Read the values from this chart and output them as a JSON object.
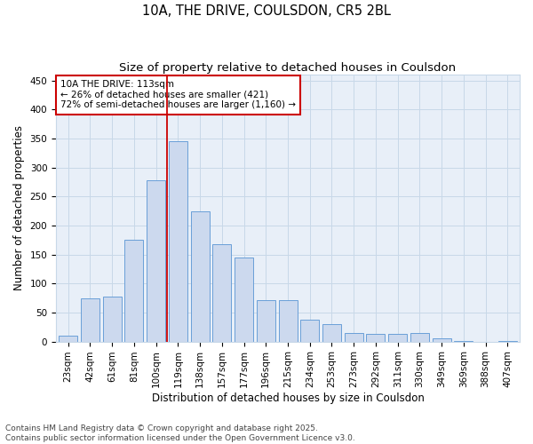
{
  "title1": "10A, THE DRIVE, COULSDON, CR5 2BL",
  "title2": "Size of property relative to detached houses in Coulsdon",
  "xlabel": "Distribution of detached houses by size in Coulsdon",
  "ylabel": "Number of detached properties",
  "categories": [
    "23sqm",
    "42sqm",
    "61sqm",
    "81sqm",
    "100sqm",
    "119sqm",
    "138sqm",
    "157sqm",
    "177sqm",
    "196sqm",
    "215sqm",
    "234sqm",
    "253sqm",
    "273sqm",
    "292sqm",
    "311sqm",
    "330sqm",
    "349sqm",
    "369sqm",
    "388sqm",
    "407sqm"
  ],
  "values": [
    10,
    75,
    78,
    175,
    278,
    345,
    225,
    168,
    145,
    72,
    72,
    38,
    30,
    15,
    13,
    13,
    15,
    6,
    1,
    0,
    1
  ],
  "bar_color": "#ccd9ee",
  "bar_edge_color": "#6a9fd8",
  "vline_x_index": 4.5,
  "vline_color": "#cc0000",
  "annotation_text": "10A THE DRIVE: 113sqm\n← 26% of detached houses are smaller (421)\n72% of semi-detached houses are larger (1,160) →",
  "annotation_box_color": "#cc0000",
  "annotation_fill": "white",
  "ylim": [
    0,
    460
  ],
  "yticks": [
    0,
    50,
    100,
    150,
    200,
    250,
    300,
    350,
    400,
    450
  ],
  "footnote": "Contains HM Land Registry data © Crown copyright and database right 2025.\nContains public sector information licensed under the Open Government Licence v3.0.",
  "title_fontsize": 10.5,
  "subtitle_fontsize": 9.5,
  "axis_label_fontsize": 8.5,
  "tick_fontsize": 7.5,
  "annotation_fontsize": 7.5,
  "footnote_fontsize": 6.5,
  "grid_color": "#c8d8e8",
  "background_color": "#e8eff8"
}
